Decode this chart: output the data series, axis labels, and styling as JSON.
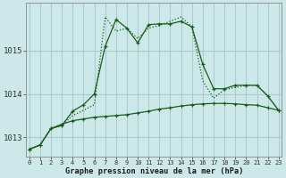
{
  "title": "Graphe pression niveau de la mer (hPa)",
  "background_color": "#cce8e8",
  "grid_color": "#aacccc",
  "line_color": "#1a5c1a",
  "x_labels": [
    "0",
    "1",
    "2",
    "3",
    "4",
    "5",
    "6",
    "7",
    "8",
    "9",
    "10",
    "11",
    "12",
    "13",
    "14",
    "15",
    "16",
    "17",
    "18",
    "19",
    "20",
    "21",
    "22",
    "23"
  ],
  "yticks": [
    1013,
    1014,
    1015
  ],
  "ylim": [
    1012.55,
    1016.1
  ],
  "xlim": [
    -0.3,
    23.3
  ],
  "line1_solid_jagged": [
    1012.72,
    1012.82,
    1013.2,
    1013.27,
    1013.6,
    1013.75,
    1014.0,
    1015.1,
    1015.72,
    1015.52,
    1015.18,
    1015.6,
    1015.62,
    1015.62,
    1015.68,
    1015.55,
    1014.68,
    1014.12,
    1014.12,
    1014.2,
    1014.2,
    1014.2,
    1013.95,
    1013.62
  ],
  "line2_solid_high": [
    1012.72,
    1012.82,
    1013.2,
    1013.27,
    1013.5,
    1013.62,
    1013.75,
    1015.78,
    1015.45,
    1015.52,
    1015.28,
    1015.52,
    1015.58,
    1015.68,
    1015.78,
    1015.55,
    1014.3,
    1013.9,
    1014.1,
    1014.15,
    1014.2,
    1014.2,
    1013.95,
    1013.62
  ],
  "line3_flat": [
    1012.72,
    1012.82,
    1013.2,
    1013.3,
    1013.38,
    1013.42,
    1013.46,
    1013.48,
    1013.5,
    1013.52,
    1013.56,
    1013.6,
    1013.65,
    1013.68,
    1013.72,
    1013.75,
    1013.77,
    1013.78,
    1013.78,
    1013.77,
    1013.75,
    1013.74,
    1013.68,
    1013.62
  ]
}
